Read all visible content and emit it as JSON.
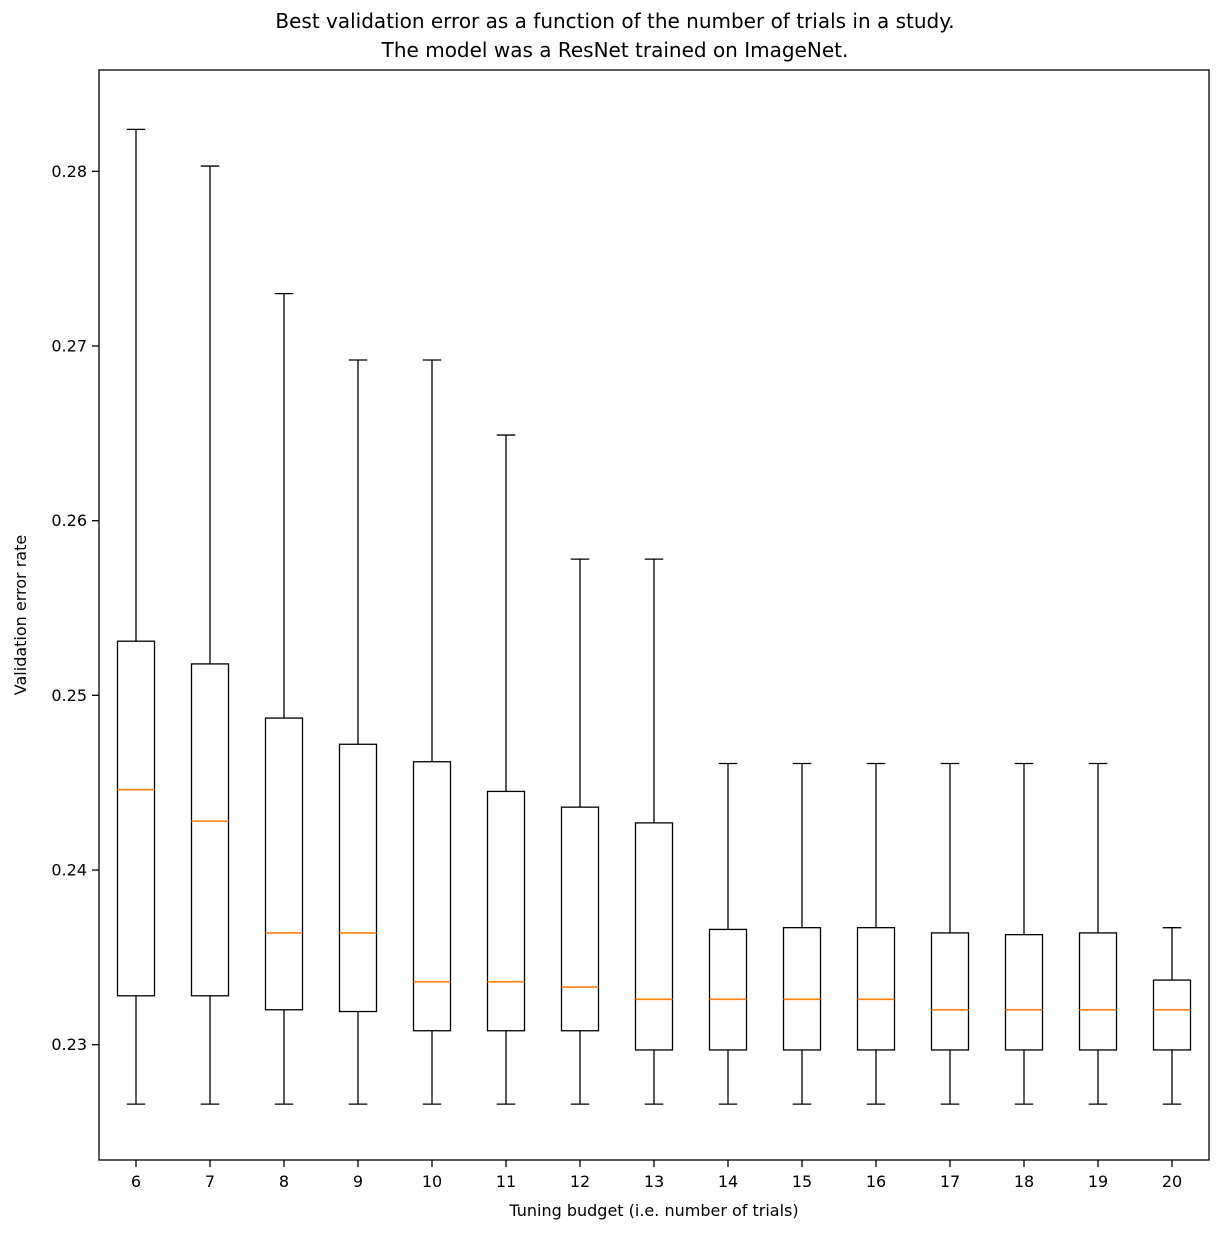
{
  "title": {
    "line1": "Best validation error as a function of the number of trials in a study.",
    "line2": "The model was a ResNet trained on ImageNet."
  },
  "chart_data": {
    "type": "boxplot",
    "title": "Best validation error as a function of the number of trials in a study.\nThe model was a ResNet trained on ImageNet.",
    "xlabel": "Tuning budget (i.e. number of trials)",
    "ylabel": "Validation error rate",
    "categories": [
      6,
      7,
      8,
      9,
      10,
      11,
      12,
      13,
      14,
      15,
      16,
      17,
      18,
      19,
      20
    ],
    "yticks": [
      0.23,
      0.24,
      0.25,
      0.26,
      0.27,
      0.28
    ],
    "ylim": [
      0.2234,
      0.2858
    ],
    "grid": false,
    "legend": "none",
    "boxes": [
      {
        "whislo": 0.2266,
        "q1": 0.2328,
        "med": 0.2446,
        "q3": 0.2531,
        "whishi": 0.2824
      },
      {
        "whislo": 0.2266,
        "q1": 0.2328,
        "med": 0.2428,
        "q3": 0.2518,
        "whishi": 0.2803
      },
      {
        "whislo": 0.2266,
        "q1": 0.232,
        "med": 0.2364,
        "q3": 0.2487,
        "whishi": 0.273
      },
      {
        "whislo": 0.2266,
        "q1": 0.2319,
        "med": 0.2364,
        "q3": 0.2472,
        "whishi": 0.2692
      },
      {
        "whislo": 0.2266,
        "q1": 0.2308,
        "med": 0.2336,
        "q3": 0.2462,
        "whishi": 0.2692
      },
      {
        "whislo": 0.2266,
        "q1": 0.2308,
        "med": 0.2336,
        "q3": 0.2445,
        "whishi": 0.2649
      },
      {
        "whislo": 0.2266,
        "q1": 0.2308,
        "med": 0.2333,
        "q3": 0.2436,
        "whishi": 0.2578
      },
      {
        "whislo": 0.2266,
        "q1": 0.2297,
        "med": 0.2326,
        "q3": 0.2427,
        "whishi": 0.2578
      },
      {
        "whislo": 0.2266,
        "q1": 0.2297,
        "med": 0.2326,
        "q3": 0.2366,
        "whishi": 0.2461
      },
      {
        "whislo": 0.2266,
        "q1": 0.2297,
        "med": 0.2326,
        "q3": 0.2367,
        "whishi": 0.2461
      },
      {
        "whislo": 0.2266,
        "q1": 0.2297,
        "med": 0.2326,
        "q3": 0.2367,
        "whishi": 0.2461
      },
      {
        "whislo": 0.2266,
        "q1": 0.2297,
        "med": 0.232,
        "q3": 0.2364,
        "whishi": 0.2461
      },
      {
        "whislo": 0.2266,
        "q1": 0.2297,
        "med": 0.232,
        "q3": 0.2363,
        "whishi": 0.2461
      },
      {
        "whislo": 0.2266,
        "q1": 0.2297,
        "med": 0.232,
        "q3": 0.2364,
        "whishi": 0.2461
      },
      {
        "whislo": 0.2266,
        "q1": 0.2297,
        "med": 0.232,
        "q3": 0.2337,
        "whishi": 0.2367
      }
    ],
    "colors": {
      "box_edge": "#000000",
      "median": "#ff7f0e",
      "background": "#ffffff"
    }
  }
}
